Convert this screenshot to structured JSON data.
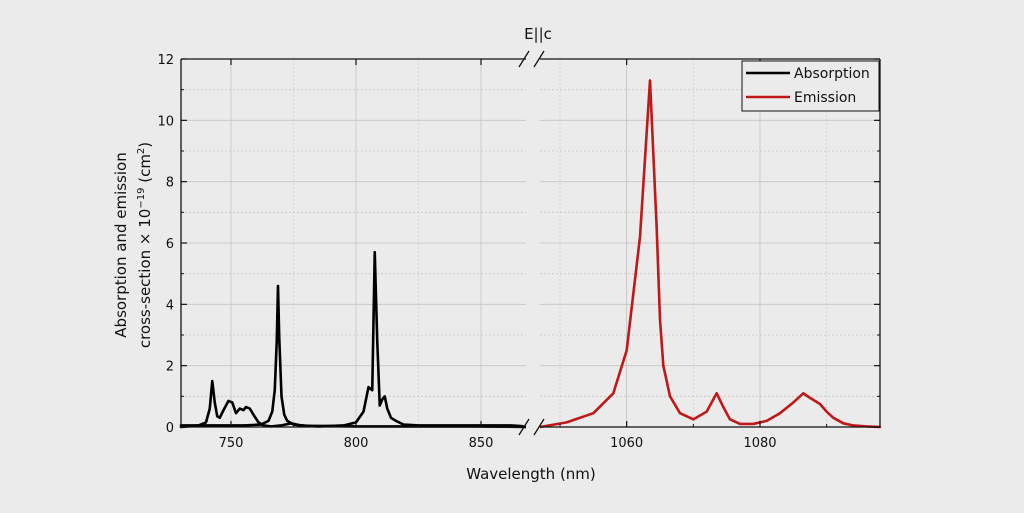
{
  "chart_data": {
    "type": "line",
    "title": "E||c",
    "xlabel": "Wavelength (nm)",
    "ylabel_line1": "Absorption and emission",
    "ylabel_line2_prefix": "cross-section × 10",
    "ylabel_exponent": "−19",
    "ylabel_unit_open": " (cm",
    "ylabel_unit_exponent": "2",
    "ylabel_unit_close": ")",
    "ylim": [
      0,
      12
    ],
    "yticks": [
      0,
      2,
      4,
      6,
      8,
      10,
      12
    ],
    "grid": true,
    "legend_position": "top-right",
    "segments": [
      {
        "name": "left",
        "xlim": [
          730,
          868
        ],
        "xticks": [
          750,
          800,
          850
        ],
        "xtick_labels": [
          "750",
          "800",
          "850"
        ]
      },
      {
        "name": "right",
        "xlim": [
          1047,
          1098
        ],
        "xticks": [
          1060,
          1080
        ],
        "xtick_labels": [
          "1060",
          "1080"
        ]
      }
    ],
    "series": [
      {
        "name": "Absorption",
        "color": "#000000",
        "segment": "left",
        "x": [
          730,
          737,
          740,
          741.5,
          742.5,
          743.5,
          744.5,
          745.5,
          747,
          749,
          750.5,
          752,
          753.5,
          755,
          756,
          757.5,
          759,
          761,
          763,
          766,
          770,
          774,
          778,
          785,
          795,
          800,
          803,
          805,
          806.5,
          807.5,
          808.5,
          809.5,
          810.5,
          811.5,
          812.5,
          814,
          816,
          819,
          825,
          835,
          845,
          855,
          862,
          866,
          868
        ],
        "values": [
          0.0,
          0.05,
          0.15,
          0.6,
          1.5,
          0.8,
          0.35,
          0.3,
          0.55,
          0.85,
          0.8,
          0.45,
          0.6,
          0.55,
          0.65,
          0.6,
          0.4,
          0.15,
          0.05,
          0.02,
          0.05,
          0.12,
          0.05,
          0.02,
          0.05,
          0.15,
          0.5,
          1.3,
          1.2,
          5.7,
          2.8,
          0.7,
          0.9,
          1.0,
          0.6,
          0.3,
          0.2,
          0.08,
          0.05,
          0.05,
          0.05,
          0.05,
          0.05,
          0.03,
          0.0
        ]
      },
      {
        "name": "Absorption",
        "color": "#000000",
        "segment": "left-tail",
        "x": [
          730,
          745,
          755,
          762,
          765,
          766.5,
          767.5,
          768.3,
          768.8,
          769.3,
          770.2,
          771.3,
          772.5,
          775,
          780,
          790,
          800,
          815,
          830,
          845,
          860,
          868
        ],
        "values": [
          0.05,
          0.05,
          0.05,
          0.08,
          0.2,
          0.5,
          1.2,
          2.8,
          4.6,
          2.9,
          1.0,
          0.4,
          0.2,
          0.08,
          0.04,
          0.03,
          0.02,
          0.02,
          0.02,
          0.02,
          0.01,
          0.0
        ]
      },
      {
        "name": "Emission",
        "color": "#c01818",
        "segment": "right",
        "x": [
          1047,
          1051,
          1055,
          1058,
          1060,
          1062,
          1063.5,
          1064.5,
          1065,
          1065.5,
          1066.5,
          1068,
          1070,
          1072,
          1073.5,
          1074.5,
          1075.5,
          1077,
          1079,
          1081,
          1083,
          1085,
          1086.5,
          1087.5,
          1089,
          1090,
          1091,
          1092.5,
          1094,
          1096,
          1098
        ],
        "values": [
          0.0,
          0.15,
          0.45,
          1.1,
          2.5,
          6.2,
          11.3,
          6.5,
          3.5,
          2.0,
          1.0,
          0.45,
          0.25,
          0.5,
          1.1,
          0.65,
          0.25,
          0.1,
          0.1,
          0.2,
          0.45,
          0.8,
          1.1,
          0.95,
          0.75,
          0.5,
          0.3,
          0.12,
          0.05,
          0.02,
          0.0
        ]
      }
    ],
    "legend": [
      {
        "label": "Absorption",
        "color": "#000000"
      },
      {
        "label": "Emission",
        "color": "#c01818"
      }
    ]
  }
}
